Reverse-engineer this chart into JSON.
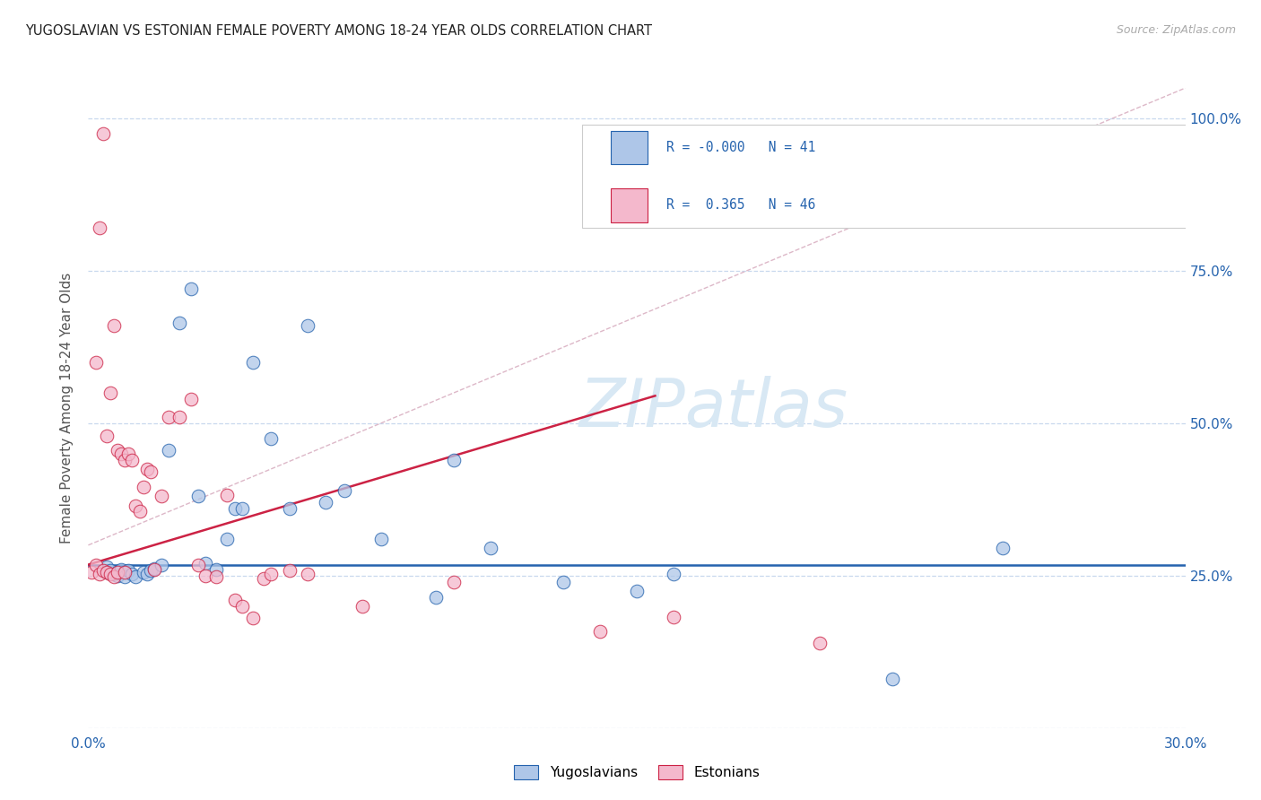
{
  "title": "YUGOSLAVIAN VS ESTONIAN FEMALE POVERTY AMONG 18-24 YEAR OLDS CORRELATION CHART",
  "source": "Source: ZipAtlas.com",
  "ylabel": "Female Poverty Among 18-24 Year Olds",
  "xlim": [
    0.0,
    0.3
  ],
  "ylim": [
    0.0,
    1.05
  ],
  "x_ticks": [
    0.0,
    0.05,
    0.1,
    0.15,
    0.2,
    0.25,
    0.3
  ],
  "x_tick_labels": [
    "0.0%",
    "",
    "",
    "",
    "",
    "",
    "30.0%"
  ],
  "y_ticks": [
    0.0,
    0.25,
    0.5,
    0.75,
    1.0
  ],
  "y_tick_labels": [
    "",
    "25.0%",
    "50.0%",
    "75.0%",
    "100.0%"
  ],
  "blue_color": "#aec6e8",
  "pink_color": "#f4b8cc",
  "blue_line_color": "#2563ae",
  "pink_line_color": "#cc2244",
  "diag_line_color": "#ddb8c8",
  "grid_color": "#c8d8ee",
  "background_color": "#ffffff",
  "legend_R_blue": "-0.000",
  "legend_N_blue": "41",
  "legend_R_pink": "0.365",
  "legend_N_pink": "46",
  "yug_x": [
    0.005,
    0.005,
    0.006,
    0.007,
    0.008,
    0.008,
    0.009,
    0.01,
    0.01,
    0.011,
    0.012,
    0.013,
    0.015,
    0.016,
    0.017,
    0.018,
    0.02,
    0.022,
    0.025,
    0.028,
    0.03,
    0.032,
    0.035,
    0.038,
    0.04,
    0.042,
    0.045,
    0.05,
    0.055,
    0.06,
    0.065,
    0.07,
    0.08,
    0.095,
    0.1,
    0.11,
    0.13,
    0.15,
    0.16,
    0.22,
    0.25
  ],
  "yug_y": [
    0.265,
    0.255,
    0.258,
    0.252,
    0.255,
    0.25,
    0.26,
    0.255,
    0.248,
    0.258,
    0.252,
    0.248,
    0.255,
    0.252,
    0.258,
    0.262,
    0.268,
    0.455,
    0.665,
    0.72,
    0.38,
    0.27,
    0.26,
    0.31,
    0.36,
    0.36,
    0.6,
    0.475,
    0.36,
    0.66,
    0.37,
    0.39,
    0.31,
    0.215,
    0.44,
    0.295,
    0.24,
    0.225,
    0.252,
    0.08,
    0.295
  ],
  "est_x": [
    0.001,
    0.002,
    0.002,
    0.003,
    0.003,
    0.004,
    0.004,
    0.005,
    0.005,
    0.006,
    0.006,
    0.007,
    0.007,
    0.008,
    0.008,
    0.009,
    0.01,
    0.01,
    0.011,
    0.012,
    0.013,
    0.014,
    0.015,
    0.016,
    0.017,
    0.018,
    0.02,
    0.022,
    0.025,
    0.028,
    0.03,
    0.032,
    0.035,
    0.038,
    0.04,
    0.042,
    0.045,
    0.048,
    0.05,
    0.055,
    0.06,
    0.075,
    0.1,
    0.14,
    0.16,
    0.2
  ],
  "est_y": [
    0.255,
    0.268,
    0.6,
    0.252,
    0.82,
    0.258,
    0.975,
    0.255,
    0.48,
    0.252,
    0.55,
    0.248,
    0.66,
    0.255,
    0.455,
    0.45,
    0.255,
    0.44,
    0.45,
    0.44,
    0.365,
    0.355,
    0.395,
    0.425,
    0.42,
    0.26,
    0.38,
    0.51,
    0.51,
    0.54,
    0.268,
    0.25,
    0.248,
    0.382,
    0.21,
    0.2,
    0.18,
    0.245,
    0.252,
    0.258,
    0.252,
    0.2,
    0.24,
    0.158,
    0.182,
    0.14
  ],
  "blue_hline_y": 0.268,
  "pink_line_x0": 0.0,
  "pink_line_y0": 0.268,
  "pink_line_x1": 0.155,
  "pink_line_y1": 0.545,
  "diag_line_x0": 0.0,
  "diag_line_y0": 0.3,
  "diag_line_x1": 0.3,
  "diag_line_y1": 1.05,
  "watermark_text": "ZIPatlas",
  "watermark_color": "#d8e8f4",
  "watermark_fontsize": 54
}
